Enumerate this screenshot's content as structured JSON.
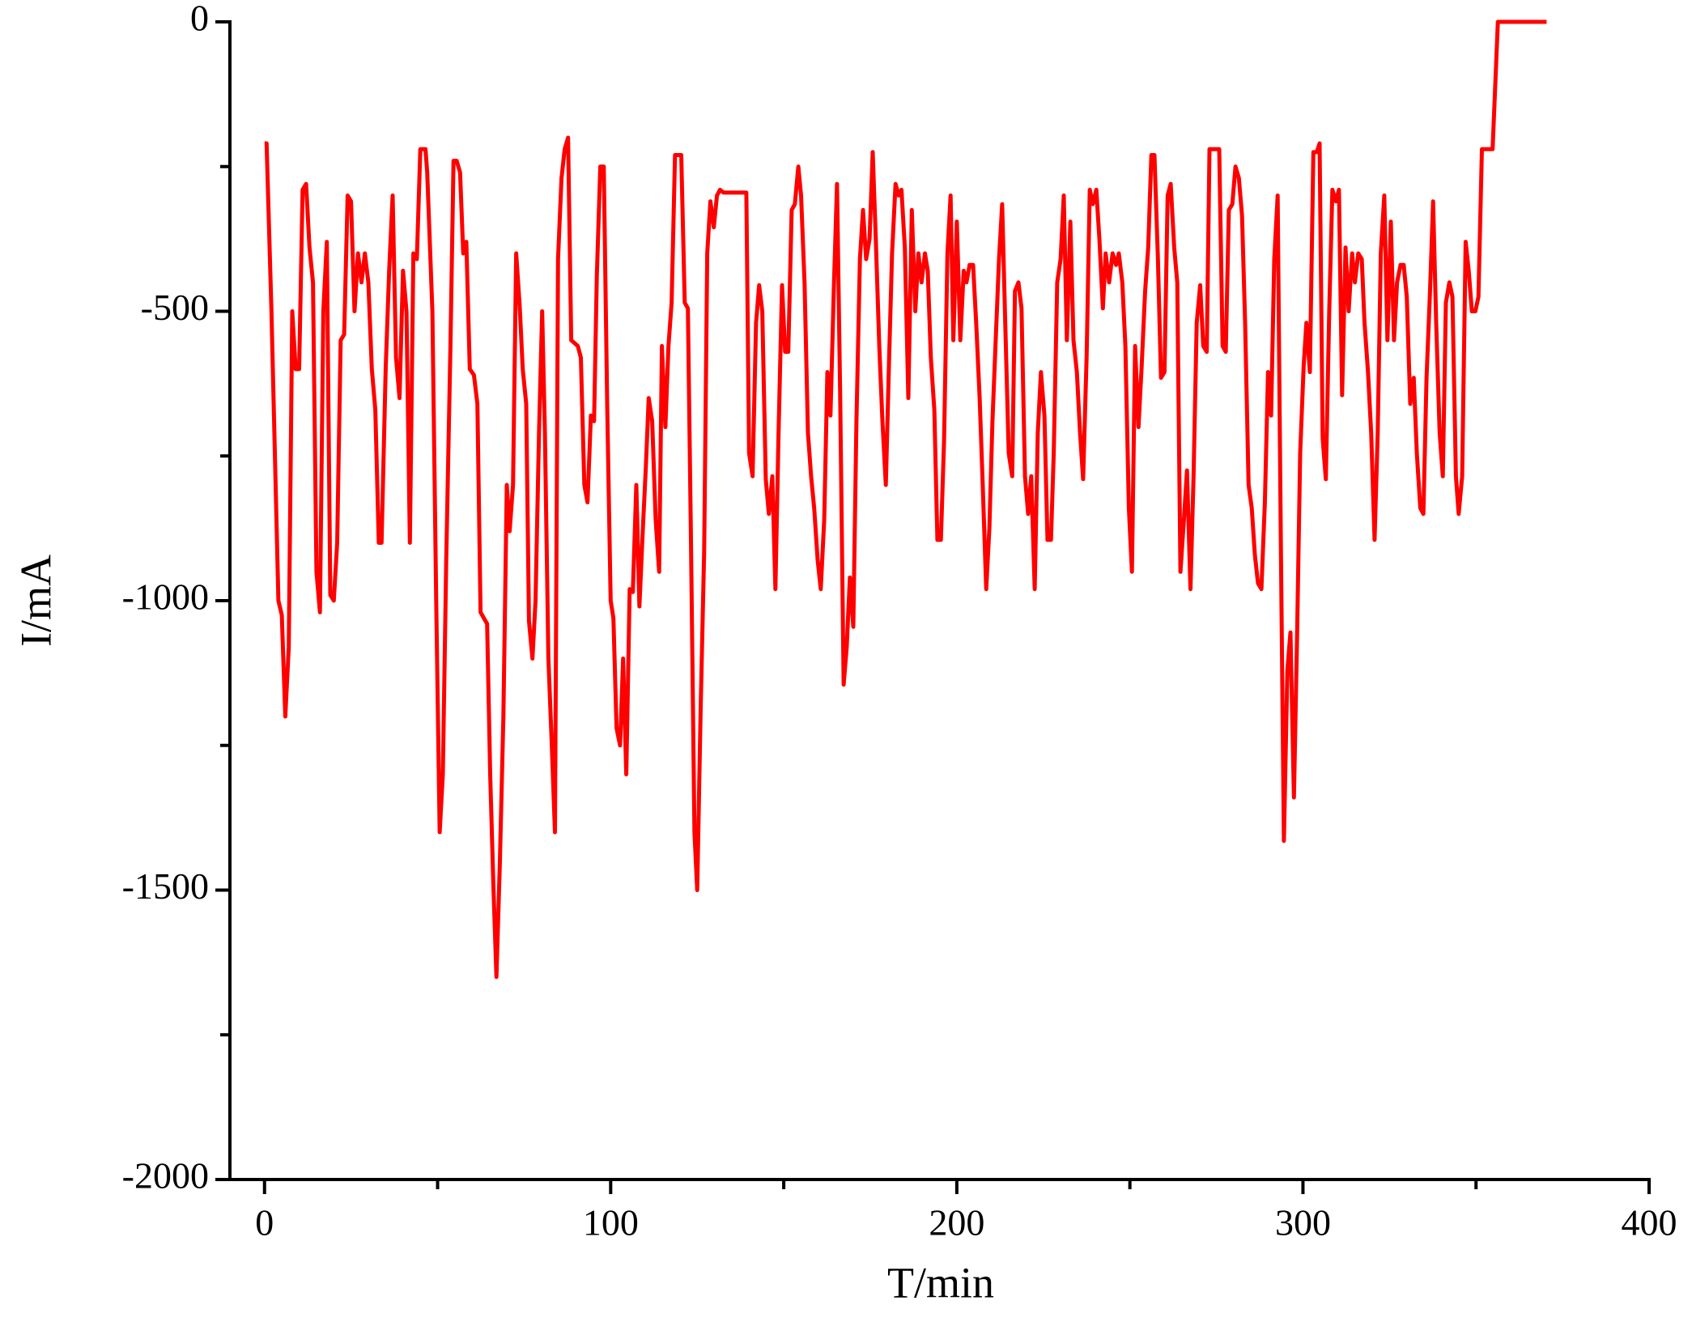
{
  "chart_data": {
    "type": "line",
    "xlabel": "T/min",
    "ylabel": "I/mA",
    "xlim": [
      -10,
      400
    ],
    "xticks": [
      0,
      100,
      200,
      300,
      400
    ],
    "xminor_ticks": [
      50,
      150,
      250,
      350
    ],
    "ylim": [
      -2000,
      0
    ],
    "yticks": [
      -2000,
      -1500,
      -1000,
      -500,
      0
    ],
    "yminor_ticks": [
      -1750,
      -1250,
      -750,
      -250
    ],
    "series": [
      {
        "name": "I",
        "color": "#ff0000",
        "x": [
          0,
          0.6,
          2,
          4,
          5,
          6,
          7,
          8,
          9,
          10,
          11,
          12,
          13,
          14,
          15,
          16,
          17,
          18,
          19,
          20,
          21,
          22,
          23,
          24,
          25,
          26,
          27,
          28,
          29,
          30,
          31,
          32,
          33,
          33.8,
          35,
          36,
          37,
          38,
          39,
          40,
          41,
          42,
          43,
          44,
          45,
          46.5,
          47,
          48.5,
          49.6,
          50.6,
          51.5,
          52.5,
          53.7,
          54.6,
          55.5,
          56.5,
          57.4,
          58.3,
          59.3,
          60.5,
          61.5,
          62.4,
          64.3,
          65.2,
          66.1,
          67,
          68,
          69,
          70,
          70.8,
          71.8,
          72.7,
          73.7,
          74.6,
          75.6,
          76.4,
          77.4,
          78.3,
          79.3,
          80.2,
          81,
          82,
          83,
          83.9,
          84.8,
          85.8,
          86.7,
          87.7,
          88.6,
          90.5,
          91.4,
          92.4,
          93.3,
          94.3,
          95.2,
          96,
          97,
          98,
          99,
          100,
          100.8,
          101.7,
          102.7,
          103.6,
          104.5,
          105.5,
          106.4,
          107.4,
          108.3,
          109.3,
          110.2,
          111,
          112,
          113,
          114,
          114.8,
          115.8,
          116.7,
          117.6,
          118.6,
          120.4,
          121.4,
          122.3,
          123.2,
          124.2,
          125,
          126,
          127,
          127.9,
          128.8,
          129.8,
          130.7,
          131.6,
          132.6,
          135.4,
          139.2,
          140,
          141,
          142,
          142.9,
          143.8,
          144.8,
          145.7,
          146.7,
          147.6,
          148.5,
          149.5,
          150.4,
          151.3,
          152.3,
          153.2,
          154.2,
          155,
          156,
          157,
          157.9,
          158.8,
          159.8,
          160.7,
          161.7,
          162.6,
          163.5,
          164.5,
          165.4,
          166.3,
          167.3,
          168.2,
          169.1,
          170.1,
          171,
          172,
          172.9,
          173.8,
          174.8,
          175.7,
          176.6,
          177.6,
          178.5,
          179.5,
          180.4,
          181.3,
          182.3,
          183.2,
          184,
          185,
          186,
          187,
          188,
          188.9,
          189.8,
          190.8,
          191.6,
          192.5,
          193.5,
          194.4,
          195.4,
          196.3,
          197.3,
          198.2,
          199,
          200,
          201,
          202,
          202.8,
          203.7,
          204.7,
          205.6,
          206.6,
          207.5,
          208.5,
          209.4,
          210.3,
          211.3,
          212.2,
          213.1,
          214,
          215,
          216,
          216.8,
          217.8,
          218.7,
          219.7,
          220.6,
          221.5,
          222.5,
          223.4,
          224.3,
          225.3,
          226.2,
          227.2,
          228,
          229,
          230,
          230.9,
          231.8,
          232.8,
          233.7,
          234.7,
          235.6,
          236.5,
          237.5,
          238.4,
          239.3,
          240.3,
          241.2,
          242.2,
          243,
          244,
          245,
          246,
          246.8,
          247.8,
          248.7,
          249.7,
          250.6,
          251.5,
          252.5,
          253.4,
          254.4,
          255.3,
          256.2,
          257.1,
          258.1,
          259,
          260,
          260.9,
          261.8,
          262.8,
          263.7,
          264.6,
          265.6,
          266.5,
          267.5,
          268.4,
          269.3,
          270.3,
          271.2,
          272.2,
          273,
          275.8,
          276.8,
          277.7,
          278.6,
          279.6,
          280.5,
          281.5,
          282.4,
          283.3,
          284.3,
          285.2,
          286.1,
          287,
          288,
          289,
          289.9,
          290.8,
          291.7,
          292.7,
          293.6,
          294.5,
          295.5,
          296.4,
          297.4,
          298.3,
          299.2,
          300.2,
          301,
          302,
          303,
          304,
          304.8,
          305.7,
          306.6,
          307.6,
          308.5,
          309.5,
          310.4,
          311.3,
          312.3,
          313.2,
          314.2,
          315,
          316,
          317,
          317.8,
          318.8,
          319.7,
          320.7,
          321.6,
          322.5,
          323.5,
          324.4,
          325.4,
          326.3,
          327.2,
          328.2,
          329.1,
          330,
          331,
          332,
          332.9,
          333.9,
          334.8,
          335.7,
          336.7,
          337.6,
          338.5,
          339.5,
          340.4,
          341.3,
          342.3,
          343.2,
          344.2,
          345,
          346,
          347,
          347.9,
          348.8,
          349.8,
          350.7,
          351.7,
          354.8,
          356.3,
          370.4
        ],
        "values": [
          -210,
          -210,
          -500,
          -1000,
          -1025,
          -1200,
          -1080,
          -500,
          -600,
          -600,
          -290,
          -280,
          -390,
          -450,
          -950,
          -1020,
          -500,
          -380,
          -990,
          -1000,
          -900,
          -550,
          -540,
          -300,
          -310,
          -500,
          -400,
          -450,
          -400,
          -450,
          -600,
          -670,
          -900,
          -900,
          -600,
          -430,
          -300,
          -580,
          -650,
          -430,
          -500,
          -900,
          -400,
          -410,
          -220,
          -220,
          -260,
          -500,
          -1000,
          -1400,
          -1300,
          -930,
          -560,
          -240,
          -240,
          -260,
          -400,
          -380,
          -600,
          -610,
          -660,
          -1020,
          -1040,
          -1300,
          -1490,
          -1650,
          -1450,
          -1200,
          -800,
          -880,
          -800,
          -400,
          -490,
          -600,
          -660,
          -1035,
          -1100,
          -1000,
          -710,
          -500,
          -710,
          -1100,
          -1250,
          -1400,
          -410,
          -270,
          -220,
          -200,
          -550,
          -560,
          -580,
          -800,
          -830,
          -680,
          -690,
          -440,
          -250,
          -250,
          -660,
          -1000,
          -1030,
          -1220,
          -1250,
          -1100,
          -1300,
          -980,
          -985,
          -800,
          -1010,
          -875,
          -765,
          -650,
          -690,
          -860,
          -950,
          -560,
          -700,
          -560,
          -485,
          -230,
          -230,
          -485,
          -495,
          -895,
          -1400,
          -1500,
          -1185,
          -915,
          -400,
          -310,
          -355,
          -300,
          -290,
          -295,
          -295,
          -295,
          -745,
          -785,
          -520,
          -455,
          -500,
          -790,
          -850,
          -785,
          -980,
          -710,
          -455,
          -570,
          -570,
          -325,
          -315,
          -250,
          -300,
          -450,
          -710,
          -785,
          -840,
          -930,
          -980,
          -860,
          -605,
          -680,
          -455,
          -280,
          -645,
          -1145,
          -1080,
          -960,
          -1045,
          -690,
          -410,
          -325,
          -410,
          -375,
          -225,
          -375,
          -560,
          -690,
          -800,
          -590,
          -400,
          -280,
          -300,
          -290,
          -390,
          -650,
          -325,
          -500,
          -400,
          -450,
          -400,
          -430,
          -580,
          -670,
          -895,
          -895,
          -725,
          -400,
          -300,
          -550,
          -345,
          -550,
          -430,
          -450,
          -420,
          -420,
          -520,
          -650,
          -800,
          -980,
          -875,
          -690,
          -540,
          -410,
          -315,
          -520,
          -745,
          -785,
          -465,
          -450,
          -495,
          -785,
          -850,
          -785,
          -980,
          -710,
          -605,
          -680,
          -895,
          -895,
          -745,
          -450,
          -410,
          -300,
          -550,
          -345,
          -550,
          -605,
          -710,
          -790,
          -580,
          -290,
          -315,
          -290,
          -375,
          -495,
          -400,
          -450,
          -400,
          -420,
          -400,
          -450,
          -560,
          -840,
          -950,
          -560,
          -700,
          -595,
          -465,
          -390,
          -230,
          -230,
          -410,
          -615,
          -605,
          -300,
          -280,
          -390,
          -450,
          -950,
          -860,
          -775,
          -980,
          -785,
          -520,
          -455,
          -560,
          -570,
          -220,
          -220,
          -560,
          -570,
          -325,
          -315,
          -250,
          -270,
          -335,
          -520,
          -800,
          -840,
          -920,
          -970,
          -980,
          -830,
          -605,
          -680,
          -410,
          -300,
          -895,
          -1415,
          -1120,
          -1055,
          -1340,
          -1060,
          -745,
          -595,
          -520,
          -605,
          -225,
          -225,
          -210,
          -720,
          -790,
          -500,
          -290,
          -310,
          -290,
          -645,
          -390,
          -500,
          -400,
          -450,
          -400,
          -410,
          -520,
          -605,
          -710,
          -895,
          -710,
          -400,
          -300,
          -550,
          -345,
          -550,
          -450,
          -420,
          -420,
          -475,
          -660,
          -615,
          -745,
          -840,
          -850,
          -615,
          -465,
          -310,
          -520,
          -710,
          -785,
          -485,
          -450,
          -475,
          -785,
          -850,
          -785,
          -380,
          -430,
          -500,
          -500,
          -475,
          -220,
          -220,
          0,
          0
        ]
      }
    ]
  }
}
